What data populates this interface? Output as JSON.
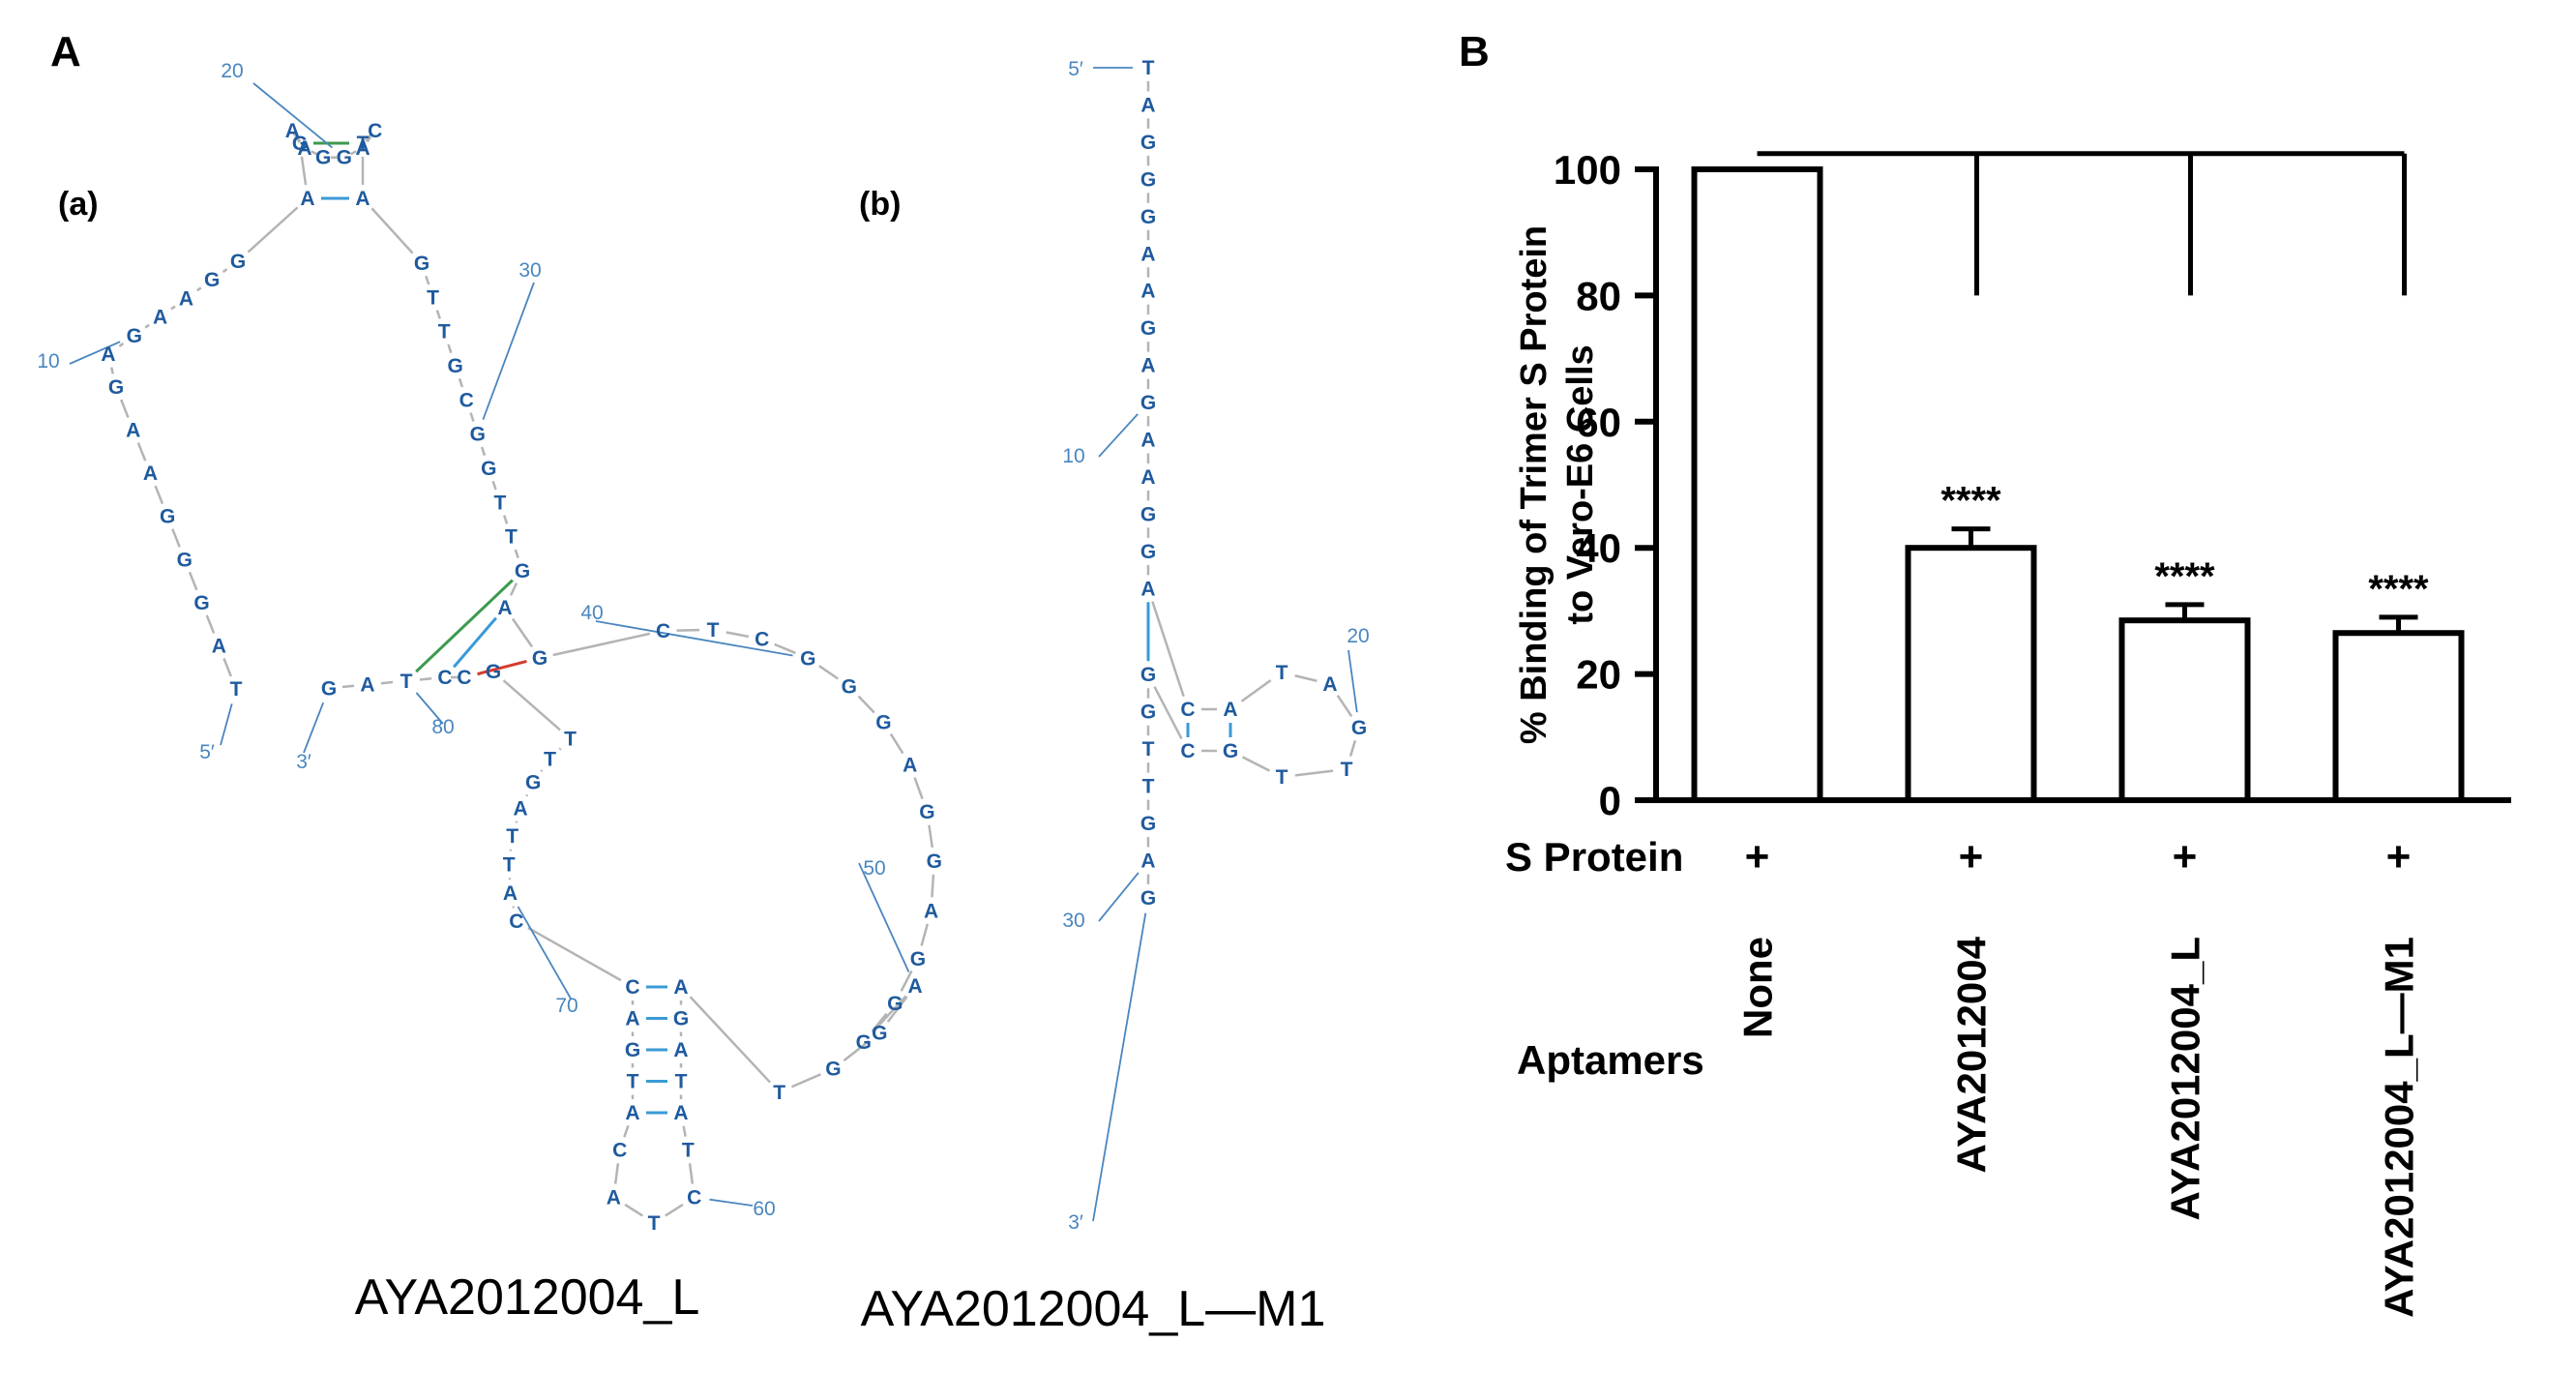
{
  "panel_A": {
    "letter": "A",
    "structure_a": {
      "label": "(a)",
      "name": "AYA2012004_L",
      "sequence": "TAGGGAAGAGAAGGAGAAGGACTAGTTGCGGTTGAGCTCGGGAGGAGGGAGGTAGATATCTACATGACCATTAGTTGCCTAG",
      "end5": "5′",
      "end3": "3′",
      "index_labels": [
        "10",
        "20",
        "30",
        "40",
        "50",
        "60",
        "70",
        "80"
      ]
    },
    "structure_b": {
      "label": "(b)",
      "name": "AYA2012004_L—M1",
      "sequence": "TAGGGAAGAGAAGGACATAGTTGCGGTTGAG",
      "end5": "5′",
      "end3": "3′",
      "index_labels": [
        "10",
        "20",
        "30"
      ]
    }
  },
  "panel_B": {
    "letter": "B",
    "row_label_s_protein": "S Protein",
    "row_label_aptamers": "Aptamers",
    "s_protein_marks": [
      "+",
      "+",
      "+",
      "+"
    ],
    "significance_labels": [
      "",
      "****",
      "****",
      "****"
    ]
  },
  "chart_data": {
    "type": "bar",
    "categories": [
      "None",
      "AYA2012004",
      "AYA2012004_L",
      "AYA2012004_L—M1"
    ],
    "values": [
      100,
      40,
      28.5,
      26.5
    ],
    "error": [
      0,
      3,
      2.5,
      2.5
    ],
    "ylabel": "% Binding of  Trimer S Protein\nto Vero-E6 Cells",
    "ylim": [
      0,
      100
    ],
    "yticks": [
      0,
      20,
      40,
      60,
      80,
      100
    ],
    "colors": {
      "bar_fill": "#ffffff",
      "bar_stroke": "#000000"
    },
    "comparison": "None vs each aptamer"
  },
  "colors": {
    "nucleotide": "#1f5a9e",
    "index": "#4a86bf",
    "backbone": "#b4b4b4",
    "pair_gc": "#d63b2f",
    "pair_at": "#3a9ad6",
    "pair_gt": "#3c9a4f"
  }
}
